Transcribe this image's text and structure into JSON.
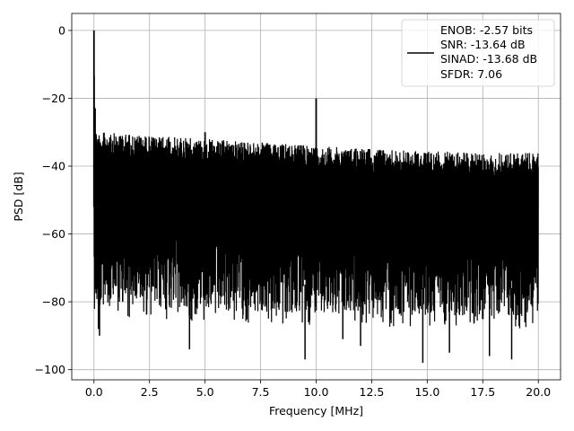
{
  "chart_data": {
    "type": "line",
    "xlabel": "Frequency [MHz]",
    "ylabel": "PSD [dB]",
    "xlim": [
      -1.0,
      21.0
    ],
    "ylim": [
      -103,
      5
    ],
    "x_ticks": [
      0.0,
      2.5,
      5.0,
      7.5,
      10.0,
      12.5,
      15.0,
      17.5,
      20.0
    ],
    "x_tick_labels": [
      "0.0",
      "2.5",
      "5.0",
      "7.5",
      "10.0",
      "12.5",
      "15.0",
      "17.5",
      "20.0"
    ],
    "y_ticks": [
      0,
      -20,
      -40,
      -60,
      -80,
      -100
    ],
    "y_tick_labels": [
      "0",
      "−20",
      "−40",
      "−60",
      "−80",
      "−100"
    ],
    "grid": true,
    "line_color": "#000000",
    "legend": {
      "placement": "top-right",
      "entries": [
        "ENOB: -2.57 bits",
        "SNR: -13.64 dB",
        "SINAD: -13.68 dB",
        "SFDR: 7.06"
      ]
    },
    "series": [
      {
        "x_range": [
          0.0,
          20.0
        ],
        "envelope_upper": [
          [
            0.0,
            0
          ],
          [
            0.05,
            -29
          ],
          [
            0.3,
            -30
          ],
          [
            2.5,
            -31
          ],
          [
            5.0,
            -32
          ],
          [
            7.5,
            -33
          ],
          [
            10.0,
            -34
          ],
          [
            12.5,
            -35
          ],
          [
            15.0,
            -35.5
          ],
          [
            17.5,
            -36
          ],
          [
            20.0,
            -36
          ]
        ],
        "noise_center": [
          [
            0.0,
            -52
          ],
          [
            5.0,
            -54
          ],
          [
            10.0,
            -55
          ],
          [
            15.0,
            -56
          ],
          [
            20.0,
            -56
          ]
        ],
        "lower_extremes": [
          [
            0.2,
            -88
          ],
          [
            0.25,
            -90
          ],
          [
            4.3,
            -94
          ],
          [
            9.5,
            -97
          ],
          [
            11.2,
            -91
          ],
          [
            12.0,
            -93
          ],
          [
            14.8,
            -98
          ],
          [
            16.0,
            -95
          ],
          [
            17.8,
            -96
          ],
          [
            18.8,
            -97
          ]
        ],
        "peaks": [
          [
            0.0,
            0
          ],
          [
            0.05,
            -23
          ],
          [
            5.0,
            -30
          ],
          [
            10.0,
            -20
          ]
        ]
      }
    ]
  }
}
